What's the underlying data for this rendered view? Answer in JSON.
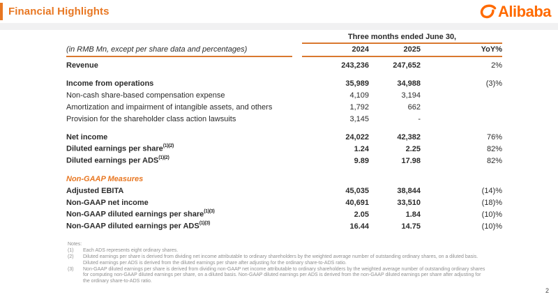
{
  "header": {
    "title": "Financial Highlights",
    "logo_text": "Alibaba"
  },
  "colors": {
    "accent": "#E87722",
    "logo_orange": "#FF6A00",
    "rule_line": "#D9782F"
  },
  "table": {
    "caption": "(in RMB Mn, except per share data and percentages)",
    "span_header": "Three months ended June 30,",
    "columns": [
      "2024",
      "2025",
      "YoY%"
    ],
    "rows": [
      {
        "label": "Revenue",
        "sup": "",
        "v2024": "243,236",
        "v2025": "247,652",
        "yoy": "2%",
        "bold": true
      },
      {
        "type": "spacer"
      },
      {
        "label": "Income from operations",
        "sup": "",
        "v2024": "35,989",
        "v2025": "34,988",
        "yoy": "(3)%",
        "bold": true
      },
      {
        "label": "Non-cash share-based compensation expense",
        "sup": "",
        "v2024": "4,109",
        "v2025": "3,194",
        "yoy": "",
        "bold": false
      },
      {
        "label": "Amortization and impairment of intangible assets, and others",
        "sup": "",
        "v2024": "1,792",
        "v2025": "662",
        "yoy": "",
        "bold": false
      },
      {
        "label": "Provision for the shareholder class action lawsuits",
        "sup": "",
        "v2024": "3,145",
        "v2025": "-",
        "yoy": "",
        "bold": false
      },
      {
        "type": "spacer"
      },
      {
        "label": "Net income",
        "sup": "",
        "v2024": "24,022",
        "v2025": "42,382",
        "yoy": "76%",
        "bold": true
      },
      {
        "label": "Diluted earnings per share",
        "sup": "(1)(2)",
        "v2024": "1.24",
        "v2025": "2.25",
        "yoy": "82%",
        "bold": true
      },
      {
        "label": "Diluted earnings per ADS",
        "sup": "(1)(2)",
        "v2024": "9.89",
        "v2025": "17.98",
        "yoy": "82%",
        "bold": true
      },
      {
        "type": "spacer"
      },
      {
        "type": "section",
        "label": "Non-GAAP Measures"
      },
      {
        "label": "Adjusted EBITA",
        "sup": "",
        "v2024": "45,035",
        "v2025": "38,844",
        "yoy": "(14)%",
        "bold": true
      },
      {
        "label": "Non-GAAP net income",
        "sup": "",
        "v2024": "40,691",
        "v2025": "33,510",
        "yoy": "(18)%",
        "bold": true
      },
      {
        "label": "Non-GAAP diluted earnings per share",
        "sup": "(1)(3)",
        "v2024": "2.05",
        "v2025": "1.84",
        "yoy": "(10)%",
        "bold": true
      },
      {
        "label": "Non-GAAP diluted earnings per ADS",
        "sup": "(1)(3)",
        "v2024": "16.44",
        "v2025": "14.75",
        "yoy": "(10)%",
        "bold": true
      }
    ]
  },
  "notes": {
    "heading": "Notes:",
    "items": [
      {
        "num": "(1)",
        "text": "Each ADS represents eight ordinary shares."
      },
      {
        "num": "(2)",
        "text": "Diluted earnings per share is derived from dividing net income attributable to ordinary shareholders by the weighted average number of outstanding ordinary shares, on a diluted basis. Diluted earnings per ADS is derived from the diluted earnings per share after adjusting for the ordinary share-to-ADS ratio."
      },
      {
        "num": "(3)",
        "text": "Non-GAAP diluted earnings per share is derived from dividing non-GAAP net income attributable to ordinary shareholders by the weighted average number of outstanding ordinary shares for computing non-GAAP diluted earnings per share, on a diluted basis. Non-GAAP diluted earnings per ADS is derived from the non-GAAP diluted earnings per share after adjusting for the ordinary share-to-ADS ratio."
      }
    ]
  },
  "page_number": "2"
}
